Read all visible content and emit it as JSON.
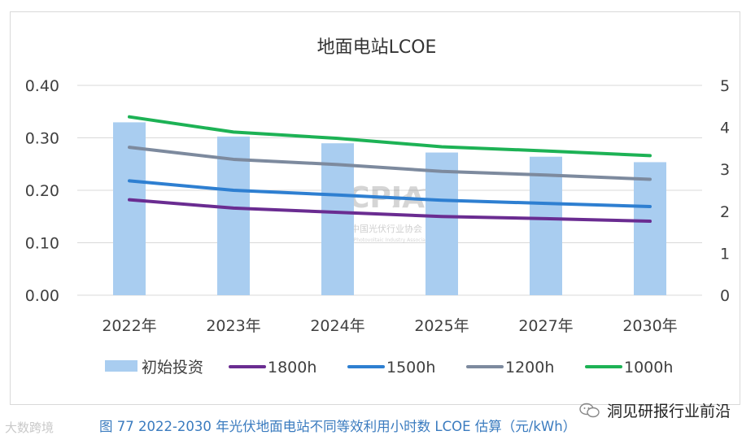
{
  "chart_data": {
    "type": "bar+line",
    "title": "地面电站LCOE",
    "categories": [
      "2022年",
      "2023年",
      "2024年",
      "2025年",
      "2027年",
      "2030年"
    ],
    "left_axis": {
      "min": 0,
      "max": 0.4,
      "ticks": [
        "0.00",
        "0.10",
        "0.20",
        "0.30",
        "0.40"
      ]
    },
    "right_axis": {
      "min": 0,
      "max": 5,
      "ticks": [
        "0",
        "1",
        "2",
        "3",
        "4",
        "5"
      ]
    },
    "bars": {
      "name": "初始投资",
      "axis": "right",
      "color": "#a9cdf0",
      "values": [
        4.12,
        3.78,
        3.62,
        3.4,
        3.3,
        3.17
      ]
    },
    "series": [
      {
        "name": "1800h",
        "color": "#6a2c91",
        "values": [
          0.182,
          0.166,
          0.158,
          0.15,
          0.146,
          0.141
        ]
      },
      {
        "name": "1500h",
        "color": "#2e7fd1",
        "values": [
          0.218,
          0.2,
          0.191,
          0.181,
          0.175,
          0.169
        ]
      },
      {
        "name": "1200h",
        "color": "#7d8a9e",
        "values": [
          0.282,
          0.259,
          0.249,
          0.236,
          0.229,
          0.221
        ]
      },
      {
        "name": "1000h",
        "color": "#1db255",
        "values": [
          0.34,
          0.311,
          0.299,
          0.283,
          0.275,
          0.266
        ]
      }
    ],
    "legend_position": "bottom",
    "grid": true
  },
  "watermark": {
    "logo": "CPIA",
    "org_cn": "中国光伏行业协会",
    "org_en": "China Photovoltaic Industry Association"
  },
  "caption": "图 77    2022-2030 年光伏地面电站不同等效利用小时数 LCOE 估算（元/kWh）",
  "source_label": "洞见研报行业前沿",
  "corner_watermark": "大数跨境"
}
